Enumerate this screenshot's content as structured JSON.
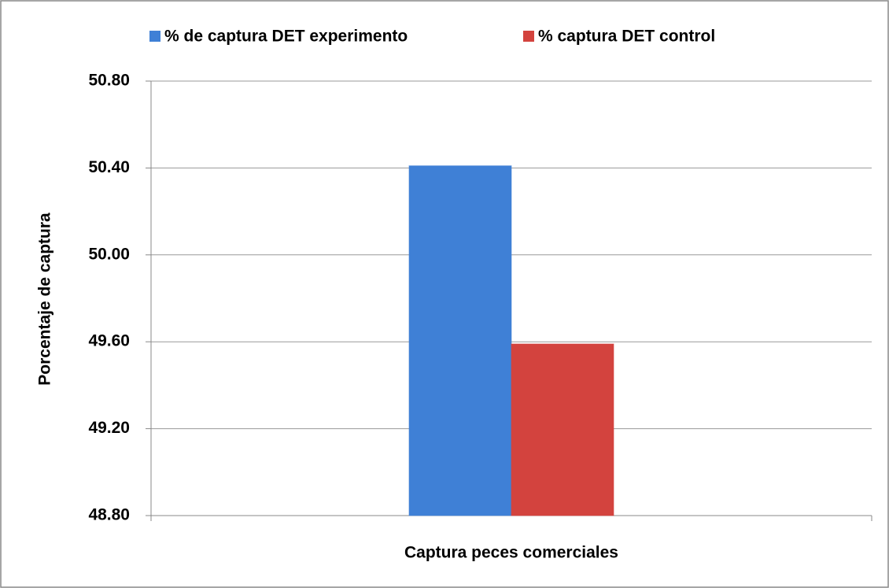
{
  "chart_data": {
    "type": "bar",
    "categories": [
      "Captura peces comerciales"
    ],
    "series": [
      {
        "name": "% de captura DET experimento",
        "color": "#3f80d6",
        "values": [
          50.41
        ]
      },
      {
        "name": "% captura DET control",
        "color": "#d3433e",
        "values": [
          49.59
        ]
      }
    ],
    "y_label": "Porcentaje de captura",
    "ylim": [
      48.8,
      50.8
    ],
    "yticks": [
      {
        "value": 48.8,
        "label": "48.80"
      },
      {
        "value": 49.2,
        "label": "49.20"
      },
      {
        "value": 49.6,
        "label": "49.60"
      },
      {
        "value": 50.0,
        "label": "50.00"
      },
      {
        "value": 50.4,
        "label": "50.40"
      },
      {
        "value": 50.8,
        "label": "50.80"
      }
    ],
    "grid": true,
    "legend": "top"
  }
}
